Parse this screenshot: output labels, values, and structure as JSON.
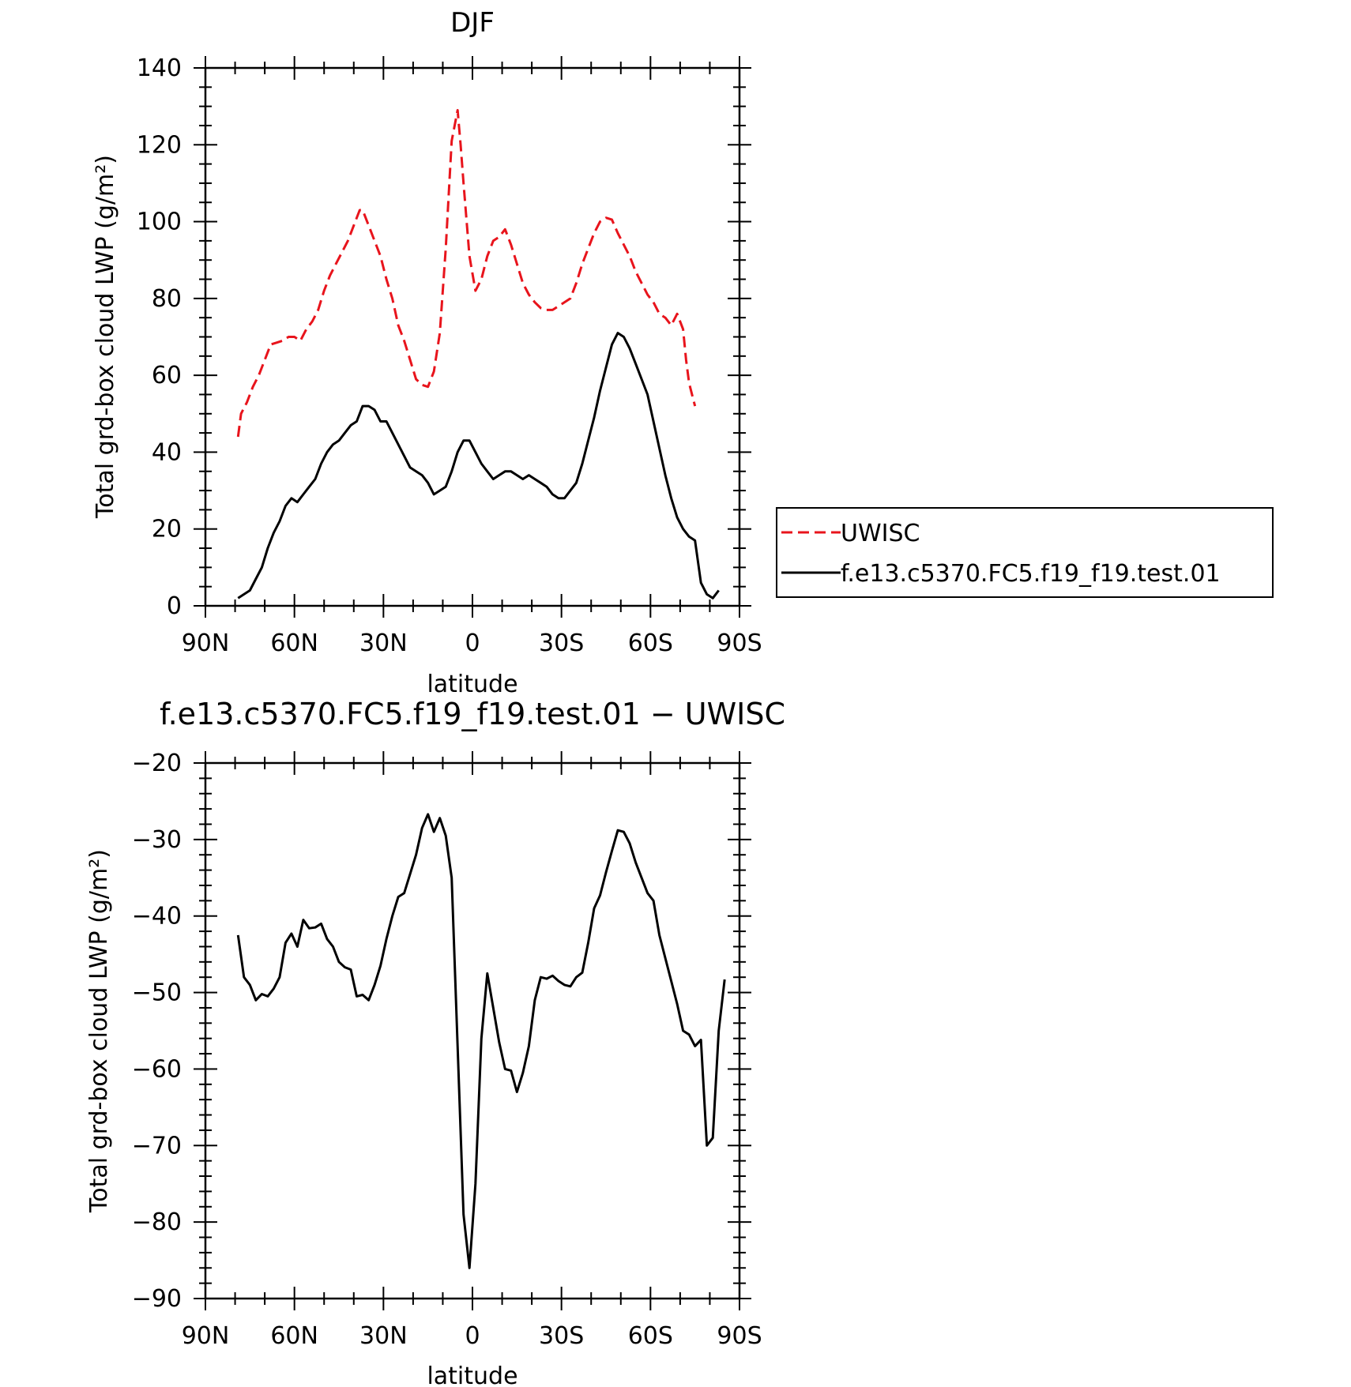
{
  "chart_data": [
    {
      "type": "line",
      "title": "DJF",
      "xlabel": "latitude",
      "ylabel": "Total grd-box cloud LWP (g/m²)",
      "xlim": [
        -90,
        90
      ],
      "ylim": [
        0,
        140
      ],
      "x_ticks": [
        -90,
        -60,
        -30,
        0,
        30,
        60,
        90
      ],
      "x_tick_labels": [
        "90N",
        "60N",
        "30N",
        "0",
        "30S",
        "60S",
        "90S"
      ],
      "y_ticks": [
        0,
        20,
        40,
        60,
        80,
        100,
        120,
        140
      ],
      "y_tick_labels": [
        "0",
        "20",
        "40",
        "60",
        "80",
        "100",
        "120",
        "140"
      ],
      "legend": "right",
      "series": [
        {
          "name": "UWISC",
          "color": "#e8141c",
          "dash": "dashed",
          "points": [
            [
              -79,
              44
            ],
            [
              -78,
              50
            ],
            [
              -76,
              53
            ],
            [
              -74,
              57
            ],
            [
              -72,
              60
            ],
            [
              -70,
              64
            ],
            [
              -68,
              68
            ],
            [
              -66,
              68.5
            ],
            [
              -64,
              69
            ],
            [
              -62,
              70
            ],
            [
              -60,
              70
            ],
            [
              -58,
              69
            ],
            [
              -56,
              72
            ],
            [
              -54,
              74
            ],
            [
              -52,
              77
            ],
            [
              -50,
              82
            ],
            [
              -48,
              86
            ],
            [
              -46,
              89
            ],
            [
              -44,
              92
            ],
            [
              -42,
              95
            ],
            [
              -40,
              99
            ],
            [
              -38,
              103
            ],
            [
              -37,
              103
            ],
            [
              -35,
              99
            ],
            [
              -33,
              95
            ],
            [
              -31,
              91
            ],
            [
              -29,
              85
            ],
            [
              -27,
              80
            ],
            [
              -25,
              73
            ],
            [
              -23,
              69
            ],
            [
              -21,
              64
            ],
            [
              -19,
              59
            ],
            [
              -17,
              57.5
            ],
            [
              -15,
              57
            ],
            [
              -13,
              61
            ],
            [
              -11,
              71
            ],
            [
              -9,
              93
            ],
            [
              -7,
              121
            ],
            [
              -5,
              129
            ],
            [
              -4,
              120
            ],
            [
              -3,
              110
            ],
            [
              -1,
              91
            ],
            [
              1,
              82
            ],
            [
              3,
              85
            ],
            [
              5,
              91
            ],
            [
              7,
              95
            ],
            [
              9,
              96
            ],
            [
              11,
              98
            ],
            [
              13,
              94
            ],
            [
              15,
              89
            ],
            [
              17,
              84
            ],
            [
              19,
              81
            ],
            [
              21,
              79
            ],
            [
              23,
              77.5
            ],
            [
              25,
              77
            ],
            [
              27,
              77
            ],
            [
              29,
              78
            ],
            [
              31,
              79
            ],
            [
              33,
              80
            ],
            [
              35,
              84
            ],
            [
              37,
              89
            ],
            [
              39,
              93
            ],
            [
              41,
              97
            ],
            [
              43,
              100
            ],
            [
              45,
              101
            ],
            [
              47,
              100.5
            ],
            [
              49,
              97
            ],
            [
              51,
              94
            ],
            [
              53,
              91
            ],
            [
              55,
              87
            ],
            [
              57,
              84
            ],
            [
              59,
              81
            ],
            [
              61,
              79
            ],
            [
              63,
              76
            ],
            [
              65,
              75
            ],
            [
              67,
              73
            ],
            [
              69,
              76
            ],
            [
              71,
              72
            ],
            [
              72,
              64
            ],
            [
              73,
              58
            ],
            [
              74,
              55
            ],
            [
              75,
              52
            ]
          ]
        },
        {
          "name": "f.e13.c5370.FC5.f19_f19.test.01",
          "color": "#000000",
          "dash": "solid",
          "points": [
            [
              -79,
              2
            ],
            [
              -77,
              3
            ],
            [
              -75,
              4
            ],
            [
              -73,
              7
            ],
            [
              -71,
              10
            ],
            [
              -69,
              15
            ],
            [
              -67,
              19
            ],
            [
              -65,
              22
            ],
            [
              -63,
              26
            ],
            [
              -61,
              28
            ],
            [
              -59,
              27
            ],
            [
              -57,
              29
            ],
            [
              -55,
              31
            ],
            [
              -53,
              33
            ],
            [
              -51,
              37
            ],
            [
              -49,
              40
            ],
            [
              -47,
              42
            ],
            [
              -45,
              43
            ],
            [
              -43,
              45
            ],
            [
              -41,
              47
            ],
            [
              -39,
              48
            ],
            [
              -37,
              52
            ],
            [
              -35,
              52
            ],
            [
              -33,
              51
            ],
            [
              -31,
              48
            ],
            [
              -29,
              48
            ],
            [
              -27,
              45
            ],
            [
              -25,
              42
            ],
            [
              -23,
              39
            ],
            [
              -21,
              36
            ],
            [
              -19,
              35
            ],
            [
              -17,
              34
            ],
            [
              -15,
              32
            ],
            [
              -13,
              29
            ],
            [
              -11,
              30
            ],
            [
              -9,
              31
            ],
            [
              -7,
              35
            ],
            [
              -5,
              40
            ],
            [
              -3,
              43
            ],
            [
              -1,
              43
            ],
            [
              1,
              40
            ],
            [
              3,
              37
            ],
            [
              5,
              35
            ],
            [
              7,
              33
            ],
            [
              9,
              34
            ],
            [
              11,
              35
            ],
            [
              13,
              35
            ],
            [
              15,
              34
            ],
            [
              17,
              33
            ],
            [
              19,
              34
            ],
            [
              21,
              33
            ],
            [
              23,
              32
            ],
            [
              25,
              31
            ],
            [
              27,
              29
            ],
            [
              29,
              28
            ],
            [
              31,
              28
            ],
            [
              33,
              30
            ],
            [
              35,
              32
            ],
            [
              37,
              37
            ],
            [
              39,
              43
            ],
            [
              41,
              49
            ],
            [
              43,
              56
            ],
            [
              45,
              62
            ],
            [
              47,
              68
            ],
            [
              49,
              71
            ],
            [
              51,
              70
            ],
            [
              53,
              67
            ],
            [
              55,
              63
            ],
            [
              57,
              59
            ],
            [
              59,
              55
            ],
            [
              61,
              48
            ],
            [
              63,
              41
            ],
            [
              65,
              34
            ],
            [
              67,
              28
            ],
            [
              69,
              23
            ],
            [
              71,
              20
            ],
            [
              73,
              18
            ],
            [
              75,
              17
            ],
            [
              77,
              6
            ],
            [
              79,
              3
            ],
            [
              81,
              2
            ],
            [
              83,
              4
            ]
          ]
        }
      ]
    },
    {
      "type": "line",
      "title": "f.e13.c5370.FC5.f19_f19.test.01 − UWISC",
      "xlabel": "latitude",
      "ylabel": "Total grd-box cloud LWP (g/m²)",
      "xlim": [
        -90,
        90
      ],
      "ylim": [
        -90,
        -20
      ],
      "x_ticks": [
        -90,
        -60,
        -30,
        0,
        30,
        60,
        90
      ],
      "x_tick_labels": [
        "90N",
        "60N",
        "30N",
        "0",
        "30S",
        "60S",
        "90S"
      ],
      "y_ticks": [
        -90,
        -80,
        -70,
        -60,
        -50,
        -40,
        -30,
        -20
      ],
      "y_tick_labels": [
        "−90",
        "−80",
        "−70",
        "−60",
        "−50",
        "−40",
        "−30",
        "−20"
      ],
      "legend": "none",
      "series": [
        {
          "color": "#000000",
          "dash": "solid",
          "points": [
            [
              -79,
              -42.5
            ],
            [
              -77,
              -48
            ],
            [
              -75,
              -49
            ],
            [
              -73,
              -51
            ],
            [
              -71,
              -50.2
            ],
            [
              -69,
              -50.5
            ],
            [
              -67,
              -49.5
            ],
            [
              -65,
              -48
            ],
            [
              -63,
              -43.5
            ],
            [
              -61,
              -42.3
            ],
            [
              -59,
              -44
            ],
            [
              -57,
              -40.5
            ],
            [
              -55,
              -41.6
            ],
            [
              -53,
              -41.5
            ],
            [
              -51,
              -41
            ],
            [
              -49,
              -43
            ],
            [
              -47,
              -44
            ],
            [
              -45,
              -46
            ],
            [
              -43,
              -46.7
            ],
            [
              -41,
              -47
            ],
            [
              -39,
              -50.5
            ],
            [
              -37,
              -50.3
            ],
            [
              -35,
              -51
            ],
            [
              -33,
              -49
            ],
            [
              -31,
              -46.5
            ],
            [
              -29,
              -43
            ],
            [
              -27,
              -40
            ],
            [
              -25,
              -37.5
            ],
            [
              -23,
              -37
            ],
            [
              -21,
              -34.5
            ],
            [
              -19,
              -32
            ],
            [
              -17,
              -28.5
            ],
            [
              -15,
              -26.7
            ],
            [
              -13,
              -29
            ],
            [
              -11,
              -27.2
            ],
            [
              -9,
              -29.5
            ],
            [
              -7,
              -35
            ],
            [
              -5,
              -57
            ],
            [
              -3,
              -79
            ],
            [
              -1,
              -86
            ],
            [
              1,
              -75
            ],
            [
              3,
              -56
            ],
            [
              5,
              -47.5
            ],
            [
              7,
              -52
            ],
            [
              9,
              -56.5
            ],
            [
              11,
              -60
            ],
            [
              13,
              -60.2
            ],
            [
              15,
              -63
            ],
            [
              17,
              -60.5
            ],
            [
              19,
              -57
            ],
            [
              21,
              -51
            ],
            [
              23,
              -48
            ],
            [
              25,
              -48.2
            ],
            [
              27,
              -47.8
            ],
            [
              29,
              -48.5
            ],
            [
              31,
              -49
            ],
            [
              33,
              -49.2
            ],
            [
              35,
              -48
            ],
            [
              37,
              -47.4
            ],
            [
              39,
              -43.5
            ],
            [
              41,
              -39
            ],
            [
              43,
              -37.3
            ],
            [
              45,
              -34.3
            ],
            [
              47,
              -31.5
            ],
            [
              49,
              -28.8
            ],
            [
              51,
              -29
            ],
            [
              53,
              -30.5
            ],
            [
              55,
              -33
            ],
            [
              57,
              -35
            ],
            [
              59,
              -37
            ],
            [
              61,
              -38
            ],
            [
              63,
              -42.5
            ],
            [
              65,
              -45.5
            ],
            [
              67,
              -48.5
            ],
            [
              69,
              -51.5
            ],
            [
              71,
              -55
            ],
            [
              73,
              -55.5
            ],
            [
              75,
              -57
            ],
            [
              77,
              -56.2
            ],
            [
              79,
              -70
            ],
            [
              81,
              -69
            ],
            [
              83,
              -55
            ],
            [
              85,
              -48.3
            ]
          ]
        }
      ]
    }
  ]
}
